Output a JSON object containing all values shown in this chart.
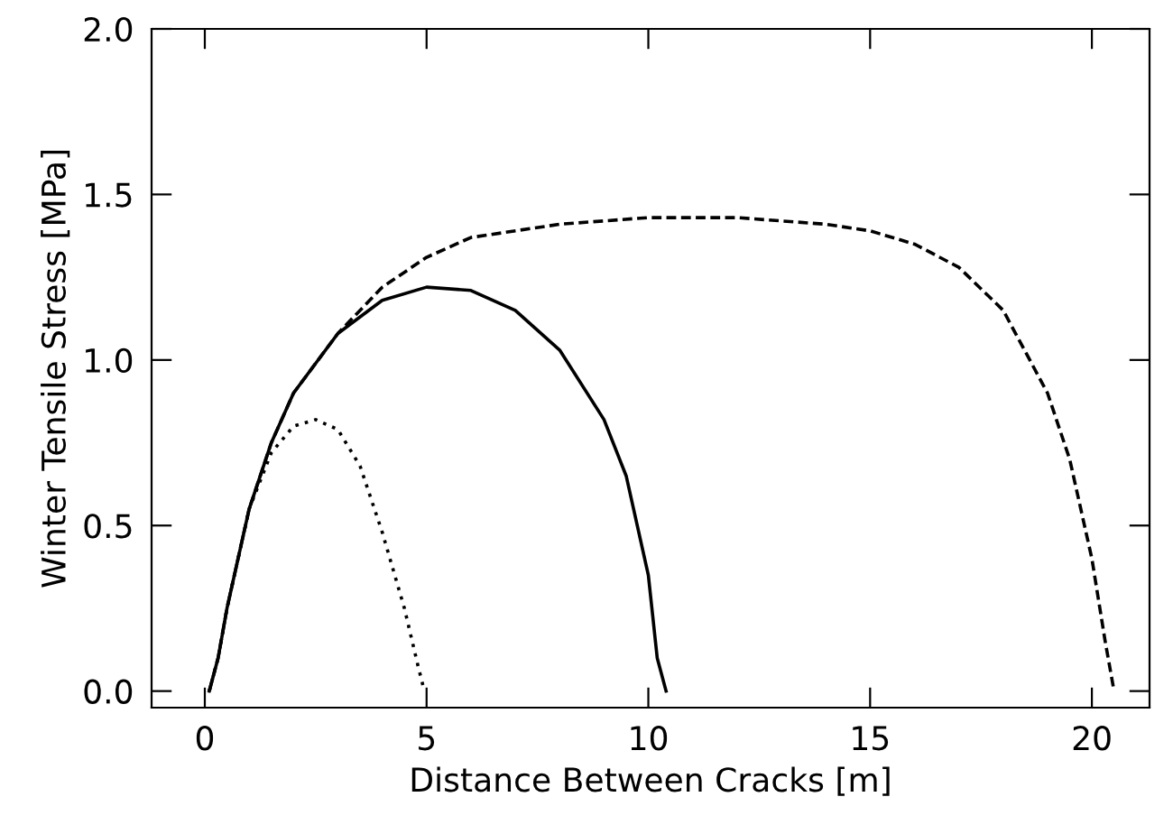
{
  "chart_data": {
    "type": "line",
    "xlabel": "Distance Between Cracks [m]",
    "ylabel": "Winter Tensile Stress [MPa]",
    "xlim": [
      -1.2,
      21.3
    ],
    "ylim": [
      -0.05,
      2.0
    ],
    "xticks": [
      0,
      5,
      10,
      15,
      20
    ],
    "yticks": [
      {
        "value": 0,
        "label": "0.0"
      },
      {
        "value": 0.5,
        "label": "0.5"
      },
      {
        "value": 1,
        "label": "1.0"
      },
      {
        "value": 1.5,
        "label": "1.5"
      },
      {
        "value": 2,
        "label": "2.0"
      }
    ],
    "grid": false,
    "marker": "none",
    "series": [
      {
        "color": "#000000",
        "line_style": "dashed",
        "x": [
          0.1,
          0.3,
          0.5,
          1,
          1.5,
          2,
          3,
          4,
          5,
          6,
          8,
          10,
          12,
          14,
          15,
          16,
          17,
          18,
          19,
          19.5,
          20,
          20.3,
          20.5
        ],
        "values": [
          0,
          0.1,
          0.25,
          0.55,
          0.75,
          0.9,
          1.08,
          1.22,
          1.31,
          1.37,
          1.41,
          1.43,
          1.43,
          1.41,
          1.39,
          1.35,
          1.28,
          1.15,
          0.9,
          0.7,
          0.4,
          0.15,
          0
        ]
      },
      {
        "color": "#000000",
        "line_style": "solid",
        "x": [
          0.1,
          0.3,
          0.5,
          1,
          1.5,
          2,
          3,
          4,
          5,
          6,
          7,
          8,
          9,
          9.5,
          10,
          10.2,
          10.4
        ],
        "values": [
          0,
          0.1,
          0.25,
          0.55,
          0.75,
          0.9,
          1.08,
          1.18,
          1.22,
          1.21,
          1.15,
          1.03,
          0.82,
          0.65,
          0.35,
          0.1,
          0
        ]
      },
      {
        "color": "#000000",
        "line_style": "dotted",
        "x": [
          0.1,
          0.3,
          0.5,
          1,
          1.5,
          2,
          2.5,
          3,
          3.5,
          4,
          4.5,
          4.8,
          4.95
        ],
        "values": [
          0,
          0.1,
          0.25,
          0.55,
          0.72,
          0.8,
          0.82,
          0.79,
          0.68,
          0.48,
          0.25,
          0.08,
          0
        ]
      }
    ]
  }
}
